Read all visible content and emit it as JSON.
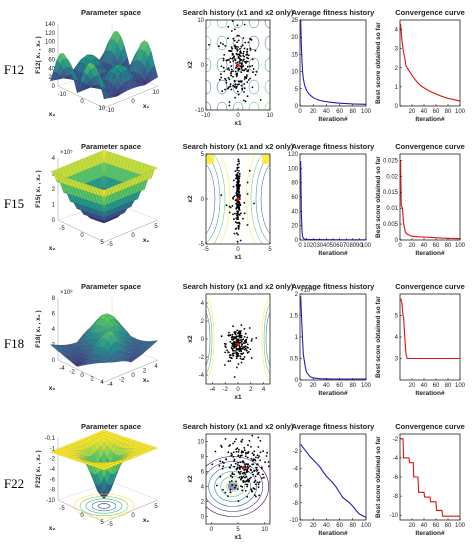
{
  "figure": {
    "rows": [
      {
        "label": "F12",
        "zlabel": "F12( x₁ , x₂ )",
        "exp": ""
      },
      {
        "label": "F15",
        "zlabel": "F15( x₁ , x₂ )",
        "exp": "×10⁵"
      },
      {
        "label": "F18",
        "zlabel": "F18( x₁ , x₂ )",
        "exp": "×10⁸"
      },
      {
        "label": "F22",
        "zlabel": "F22( x₁ , x₂ )",
        "exp": ""
      }
    ],
    "panel_titles": {
      "surface": "Parameter space",
      "search": "Search history (x1 and x2 only)",
      "fitness": "Average fitness history",
      "convergence": "Convergence curve"
    },
    "axis_labels": {
      "x1": "x1",
      "x2": "x2",
      "iteration": "Iteration#",
      "best_score": "Best score obtained so far",
      "surf_x1": "x₁",
      "surf_x2": "x₂"
    },
    "colors": {
      "fitness": "#1f1fb4",
      "convergence": "#e01010",
      "points": "#000000",
      "best_point": "#e01010"
    }
  },
  "chart_data": [
    {
      "type": "surface",
      "row": 0,
      "title": "Parameter space",
      "zticks": [
        0,
        20,
        40,
        60,
        80,
        100,
        120,
        140
      ],
      "xticks": [
        -10,
        0,
        10
      ],
      "yticks": [
        -10,
        0,
        10
      ]
    },
    {
      "type": "scatter",
      "row": 0,
      "title": "Search history (x1 and x2 only)",
      "xlim": [
        -10,
        10
      ],
      "ylim": [
        -10,
        10
      ],
      "xticks": [
        -10,
        0,
        10
      ],
      "yticks": [
        -10,
        0,
        10
      ],
      "xlabel": "x1",
      "ylabel": "x2",
      "cluster": [
        0,
        0
      ],
      "spread": 2.6
    },
    {
      "type": "line",
      "row": 0,
      "title": "Average fitness history",
      "xlabel": "Iteration#",
      "xlim": [
        0,
        100
      ],
      "ylim": [
        0,
        25
      ],
      "xticks": [
        0,
        20,
        40,
        60,
        80,
        100
      ],
      "yticks": [
        0,
        5,
        10,
        15,
        20,
        25
      ],
      "x": [
        1,
        2,
        3,
        4,
        5,
        7,
        10,
        14,
        20,
        30,
        45,
        60,
        80,
        100
      ],
      "y": [
        25,
        18,
        13,
        10,
        8,
        6,
        4.5,
        3.4,
        2.4,
        1.6,
        1.1,
        0.8,
        0.6,
        0.5
      ]
    },
    {
      "type": "line",
      "row": 0,
      "title": "Convergence curve",
      "xlabel": "Iteration#",
      "ylabel": "Best score obtained so far",
      "xlim": [
        0,
        100
      ],
      "ylim": [
        0,
        4.5
      ],
      "xticks": [
        20,
        40,
        60,
        80,
        100
      ],
      "yticks": [
        0,
        1,
        2,
        3,
        4
      ],
      "x": [
        1,
        3,
        5,
        8,
        10,
        14,
        18,
        22,
        26,
        30,
        35,
        40,
        48,
        55,
        62,
        70,
        80,
        88,
        95,
        100
      ],
      "y": [
        4.3,
        3.5,
        3.0,
        2.5,
        2.1,
        1.9,
        1.7,
        1.5,
        1.35,
        1.2,
        1.05,
        0.95,
        0.8,
        0.7,
        0.6,
        0.5,
        0.4,
        0.35,
        0.3,
        0.25
      ]
    },
    {
      "type": "surface",
      "row": 1,
      "title": "Parameter space",
      "zticks": [
        0,
        1,
        2,
        3,
        4
      ],
      "xticks": [
        -5,
        0,
        5
      ],
      "yticks": [
        -5,
        0,
        5
      ]
    },
    {
      "type": "scatter",
      "row": 1,
      "title": "Search history (x1 and x2 only)",
      "xlim": [
        -5,
        5
      ],
      "ylim": [
        -5,
        5
      ],
      "xticks": [
        -5,
        0,
        5
      ],
      "yticks": [
        -5,
        0,
        5
      ],
      "xlabel": "x1",
      "ylabel": "x2",
      "cluster": [
        0,
        0
      ],
      "spread": 0.3,
      "vertical": true
    },
    {
      "type": "line",
      "row": 1,
      "title": "Average fitness history",
      "xlabel": "Iteration#",
      "xlim": [
        0,
        100
      ],
      "ylim": [
        0,
        120
      ],
      "xticks": [
        0,
        10,
        20,
        30,
        40,
        50,
        60,
        70,
        80,
        90,
        100
      ],
      "yticks": [
        0,
        20,
        40,
        60,
        80,
        100,
        120
      ],
      "x": [
        1,
        2,
        3,
        4,
        5,
        6,
        8,
        12,
        20,
        40,
        70,
        100
      ],
      "y": [
        110,
        40,
        12,
        5,
        2.5,
        1.5,
        1,
        0.7,
        0.5,
        0.4,
        0.3,
        0.3
      ]
    },
    {
      "type": "line",
      "row": 1,
      "title": "Convergence curve",
      "xlabel": "Iteration#",
      "ylabel": "Best score obtained so far",
      "xlim": [
        0,
        100
      ],
      "ylim": [
        0,
        0.027
      ],
      "xticks": [
        0,
        20,
        40,
        60,
        80,
        100
      ],
      "yticks": [
        0,
        0.005,
        0.01,
        0.015,
        0.02,
        0.025
      ],
      "x": [
        1,
        2,
        4,
        6,
        9,
        12,
        16,
        20,
        30,
        40,
        55,
        70,
        85,
        100
      ],
      "y": [
        0.025,
        0.011,
        0.01,
        0.0052,
        0.0025,
        0.0018,
        0.0015,
        0.0012,
        0.001,
        0.0009,
        0.0008,
        0.0006,
        0.0005,
        0.0004
      ]
    },
    {
      "type": "surface",
      "row": 2,
      "title": "Parameter space",
      "zticks": [
        0,
        2,
        4,
        6,
        8
      ],
      "xticks": [
        -4,
        -2,
        0,
        2,
        4
      ],
      "yticks": [
        -4,
        -2,
        0,
        2,
        4
      ]
    },
    {
      "type": "scatter",
      "row": 2,
      "title": "Search history (x1 and x2 only)",
      "xlim": [
        -5,
        5
      ],
      "ylim": [
        -5,
        5
      ],
      "xticks": [
        -4,
        -2,
        0,
        2,
        4
      ],
      "yticks": [
        -4,
        -2,
        0,
        2,
        4
      ],
      "xlabel": "x1",
      "ylabel": "x2",
      "cluster": [
        0,
        -0.6
      ],
      "spread": 0.9
    },
    {
      "type": "line",
      "row": 2,
      "title": "Average fitness history",
      "xlabel": "Iteration#",
      "exp": "×10⁴",
      "xlim": [
        0,
        100
      ],
      "ylim": [
        0,
        2
      ],
      "xticks": [
        0,
        20,
        40,
        60,
        80,
        100
      ],
      "yticks": [
        0,
        0.5,
        1,
        1.5,
        2
      ],
      "x": [
        1,
        3,
        5,
        8,
        10,
        15,
        20,
        30,
        50,
        100
      ],
      "y": [
        1.95,
        1.2,
        0.6,
        0.3,
        0.18,
        0.08,
        0.05,
        0.03,
        0.02,
        0.02
      ]
    },
    {
      "type": "line",
      "row": 2,
      "title": "Convergence curve",
      "xlabel": "Iteration#",
      "ylabel": "Best score obtained so far",
      "xlim": [
        0,
        100
      ],
      "ylim": [
        2,
        6
      ],
      "xticks": [
        20,
        40,
        60,
        80,
        100
      ],
      "yticks": [
        3,
        4,
        5
      ],
      "x": [
        1,
        3,
        5,
        6,
        8,
        10,
        12,
        15,
        20,
        30,
        50,
        100
      ],
      "y": [
        5.8,
        5.6,
        5.0,
        4.9,
        4.0,
        3.2,
        3.0,
        3.0,
        3.0,
        3.0,
        3.0,
        3.0
      ]
    },
    {
      "type": "surface",
      "row": 3,
      "title": "Parameter space",
      "zticks": [
        -10,
        -8,
        -6,
        -4,
        -2,
        -1,
        -0.1
      ],
      "xticks": [
        -5,
        0,
        5
      ],
      "yticks": [
        -5,
        0,
        5
      ]
    },
    {
      "type": "scatter",
      "row": 3,
      "title": "Search history (x1 and x2 only)",
      "xlim": [
        -1,
        11
      ],
      "ylim": [
        -1,
        11
      ],
      "xticks": [
        0,
        5,
        10
      ],
      "yticks": [
        0,
        2,
        4,
        6,
        8,
        10
      ],
      "xlabel": "x1",
      "ylabel": "x2",
      "cluster": [
        6,
        6.5
      ],
      "spread": 2.0
    },
    {
      "type": "line",
      "row": 3,
      "title": "Average fitness history",
      "xlabel": "Iteration#",
      "xlim": [
        0,
        100
      ],
      "ylim": [
        -10,
        0
      ],
      "xticks": [
        0,
        20,
        40,
        60,
        80,
        100
      ],
      "yticks": [
        -10,
        -8,
        -6,
        -4,
        -2
      ],
      "x": [
        1,
        5,
        10,
        15,
        20,
        25,
        30,
        35,
        40,
        45,
        50,
        55,
        60,
        65,
        70,
        75,
        80,
        85,
        90,
        95,
        100
      ],
      "y": [
        -1.2,
        -1.6,
        -2.1,
        -2.6,
        -3.0,
        -3.4,
        -3.8,
        -4.4,
        -4.9,
        -5.3,
        -5.7,
        -6.2,
        -6.8,
        -7.4,
        -7.7,
        -8.0,
        -8.4,
        -8.9,
        -9.3,
        -9.5,
        -9.7
      ]
    },
    {
      "type": "line",
      "row": 3,
      "title": "Convergence curve",
      "xlabel": "Iteration#",
      "ylabel": "Best score obtained so far",
      "xlim": [
        0,
        100
      ],
      "ylim": [
        -10.5,
        -1.5
      ],
      "xticks": [
        20,
        40,
        60,
        80,
        100
      ],
      "yticks": [
        -10,
        -8,
        -6,
        -4,
        -2
      ],
      "x": [
        1,
        5,
        6,
        15,
        16,
        22,
        23,
        30,
        31,
        40,
        41,
        50,
        51,
        60,
        61,
        70,
        71,
        100
      ],
      "y": [
        -2,
        -2,
        -4,
        -4,
        -4.5,
        -4.5,
        -6.0,
        -6.0,
        -7.6,
        -7.6,
        -8.1,
        -8.1,
        -8.6,
        -8.6,
        -9.5,
        -9.5,
        -10.1,
        -10.1
      ]
    }
  ]
}
